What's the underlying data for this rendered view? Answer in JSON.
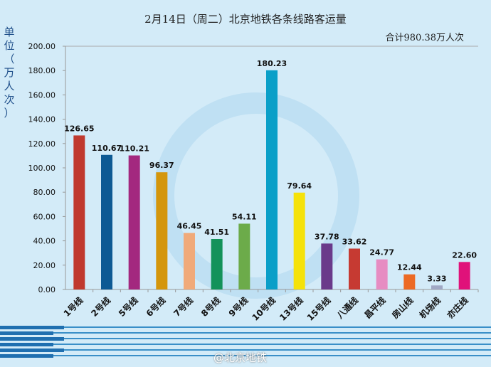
{
  "chart_data": {
    "type": "bar",
    "title": "2月14日（周二）北京地铁各条线路客运量",
    "subtitle": "合计980.38万人次",
    "ylabel": "单位（万人次）",
    "xlabel": "",
    "ylim": [
      0,
      200
    ],
    "yticks": [
      "0.00",
      "20.00",
      "40.00",
      "60.00",
      "80.00",
      "100.00",
      "120.00",
      "140.00",
      "160.00",
      "180.00",
      "200.00"
    ],
    "grid": false,
    "categories": [
      "1号线",
      "2号线",
      "5号线",
      "6号线",
      "7号线",
      "8号线",
      "9号线",
      "10号线",
      "13号线",
      "15号线",
      "八通线",
      "昌平线",
      "房山线",
      "机场线",
      "亦庄线"
    ],
    "values": [
      126.65,
      110.67,
      110.21,
      96.37,
      46.45,
      41.51,
      54.11,
      180.23,
      79.64,
      37.78,
      33.62,
      24.77,
      12.44,
      3.33,
      22.6
    ],
    "labels": [
      "126.65",
      "110.67",
      "110.21",
      "96.37",
      "46.45",
      "41.51",
      "54.11",
      "180.23",
      "79.64",
      "37.78",
      "33.62",
      "24.77",
      "12.44",
      "3.33",
      "22.60"
    ],
    "colors": [
      "#c0392e",
      "#0d5a94",
      "#a3287f",
      "#d4960c",
      "#f0aa7a",
      "#13925a",
      "#6cab4a",
      "#0a9fc8",
      "#f5e20a",
      "#6a3a8a",
      "#c63a32",
      "#e68cc2",
      "#ec6a24",
      "#a0a8c4",
      "#e0127a"
    ]
  },
  "watermark": "@北京地铁"
}
